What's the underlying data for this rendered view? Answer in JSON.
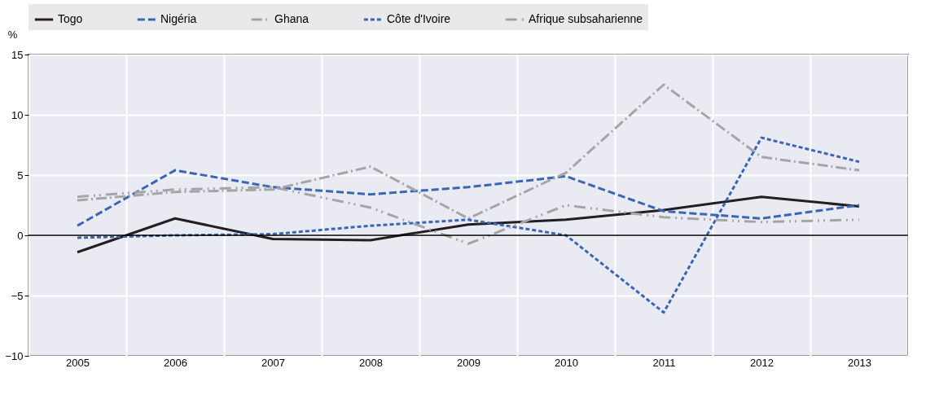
{
  "chart_data": {
    "type": "line",
    "ylabel": "%",
    "categories": [
      "2005",
      "2006",
      "2007",
      "2008",
      "2009",
      "2010",
      "2011",
      "2012",
      "2013"
    ],
    "series": [
      {
        "name": "Togo",
        "color": "#231f20",
        "line_style": "solid",
        "values": [
          -1.4,
          1.4,
          -0.3,
          -0.4,
          0.9,
          1.3,
          2.1,
          3.2,
          2.4
        ]
      },
      {
        "name": "Nigéria",
        "color": "#3a66b3",
        "line_style": "dashed",
        "values": [
          0.8,
          5.4,
          4.0,
          3.4,
          4.0,
          4.9,
          2.0,
          1.4,
          2.5
        ]
      },
      {
        "name": "Ghana",
        "color": "#a5a5a8",
        "line_style": "dashdot",
        "values": [
          2.9,
          3.6,
          3.8,
          5.7,
          1.4,
          5.2,
          12.5,
          6.5,
          5.4
        ]
      },
      {
        "name": "Côte d'Ivoire",
        "color": "#3a66b3",
        "line_style": "dotted",
        "values": [
          -0.2,
          0.0,
          0.1,
          0.8,
          1.3,
          0.0,
          -6.4,
          8.1,
          6.1
        ]
      },
      {
        "name": "Afrique subsaharienne",
        "color": "#a5a5a8",
        "line_style": "dashdotdot",
        "values": [
          3.2,
          3.8,
          4.0,
          2.3,
          -0.7,
          2.5,
          1.5,
          1.1,
          1.3
        ]
      }
    ],
    "ylim": [
      -10,
      15
    ],
    "yticks": [
      -10,
      -5,
      0,
      5,
      10,
      15
    ],
    "grid": true,
    "legend": "top",
    "marker": "none",
    "ref_lines": [
      {
        "axis": "y",
        "value": 0,
        "color": "#000000"
      }
    ]
  }
}
